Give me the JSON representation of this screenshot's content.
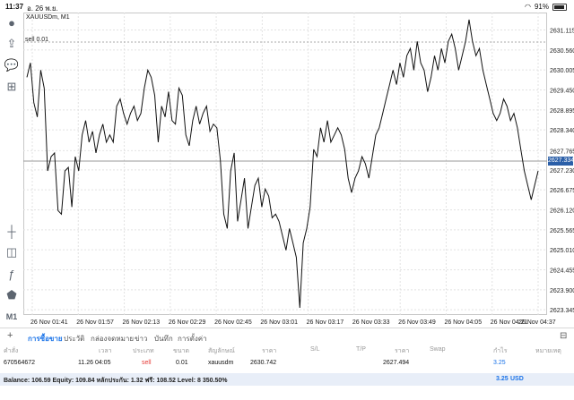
{
  "status_bar": {
    "time": "11:37",
    "date": "อ. 26 พ.ย.",
    "battery": "91%"
  },
  "chart": {
    "symbol_label": "XAUUSDm, M1",
    "sell_label": "sell 0.01",
    "current_price": "2627.334",
    "y_ticks": [
      "2631.115",
      "2630.560",
      "2630.005",
      "2629.450",
      "2628.895",
      "2628.340",
      "2627.765",
      "2627.230",
      "2626.675",
      "2626.120",
      "2625.565",
      "2625.010",
      "2624.455",
      "2623.900",
      "2623.345"
    ],
    "x_ticks": [
      "26 Nov 01:41",
      "26 Nov 01:57",
      "26 Nov 02:13",
      "26 Nov 02:29",
      "26 Nov 02:45",
      "26 Nov 03:01",
      "26 Nov 03:17",
      "26 Nov 03:33",
      "26 Nov 03:49",
      "26 Nov 04:05",
      "26 Nov 04:21",
      "26 Nov 04:37"
    ],
    "price_line": [
      2629.8,
      2630.2,
      2629.1,
      2628.7,
      2630.0,
      2629.5,
      2627.2,
      2627.6,
      2627.7,
      2626.1,
      2626.0,
      2627.2,
      2627.3,
      2626.2,
      2627.6,
      2627.2,
      2628.2,
      2628.6,
      2628.0,
      2628.3,
      2627.7,
      2628.2,
      2628.5,
      2628.0,
      2628.2,
      2628.0,
      2629.0,
      2629.2,
      2628.8,
      2628.5,
      2628.8,
      2629.0,
      2628.6,
      2628.8,
      2629.5,
      2630.0,
      2629.8,
      2629.3,
      2628.0,
      2629.0,
      2628.7,
      2629.4,
      2628.6,
      2628.5,
      2629.5,
      2629.3,
      2628.2,
      2627.9,
      2628.6,
      2629.0,
      2628.5,
      2628.8,
      2629.0,
      2628.3,
      2628.5,
      2628.4,
      2627.5,
      2626.0,
      2625.6,
      2627.2,
      2627.7,
      2625.8,
      2626.4,
      2627.0,
      2625.6,
      2626.2,
      2626.8,
      2627.0,
      2626.2,
      2626.7,
      2626.5,
      2625.9,
      2626.0,
      2625.8,
      2625.4,
      2625.0,
      2625.6,
      2625.2,
      2624.8,
      2623.4,
      2625.2,
      2625.6,
      2626.2,
      2627.8,
      2627.6,
      2628.4,
      2628.0,
      2628.6,
      2628.0,
      2628.2,
      2628.4,
      2628.2,
      2627.8,
      2627.0,
      2626.6,
      2627.0,
      2627.2,
      2627.6,
      2627.4,
      2627.0,
      2627.6,
      2628.2,
      2628.4,
      2628.8,
      2629.2,
      2629.6,
      2630.0,
      2629.6,
      2630.2,
      2629.8,
      2630.4,
      2630.6,
      2630.0,
      2630.8,
      2630.2,
      2630.0,
      2629.4,
      2629.8,
      2630.4,
      2630.0,
      2630.6,
      2630.2,
      2630.8,
      2631.0,
      2630.6,
      2630.0,
      2630.4,
      2630.8,
      2631.4,
      2630.8,
      2630.4,
      2630.6,
      2630.0,
      2629.6,
      2629.2,
      2628.8,
      2628.6,
      2628.8,
      2629.2,
      2629.0,
      2628.6,
      2628.8,
      2628.4,
      2627.8,
      2627.2,
      2626.8,
      2626.4,
      2626.8,
      2627.2
    ],
    "ylim": [
      2623.2,
      2631.6
    ]
  },
  "left_toolbar": {
    "timeframe": "M1"
  },
  "tabs": [
    "การซื้อขาย",
    "ประวัติ",
    "กล่องจดหมาย",
    "ข่าว",
    "บันทึก",
    "การตั้งค่า"
  ],
  "table": {
    "headers": [
      "คำสั่ง",
      "เวลา",
      "ประเภท",
      "ขนาด",
      "สัญลักษณ์",
      "ราคา",
      "S/L",
      "T/P",
      "ราคา",
      "Swap",
      "กำไร",
      "หมายเหตุ"
    ],
    "row": {
      "order": "670564672",
      "time": "11.26 04:05",
      "type": "sell",
      "size": "0.01",
      "symbol": "xauusdm",
      "price_open": "2630.742",
      "price_current": "2627.494",
      "profit": "3.25"
    }
  },
  "summary": {
    "text": "Balance: 106.59 Equity: 109.84 หลักประกัน: 1.32 ฟรี: 108.52 Level: 8 350.50%",
    "profit": "3.25",
    "currency": "USD"
  }
}
